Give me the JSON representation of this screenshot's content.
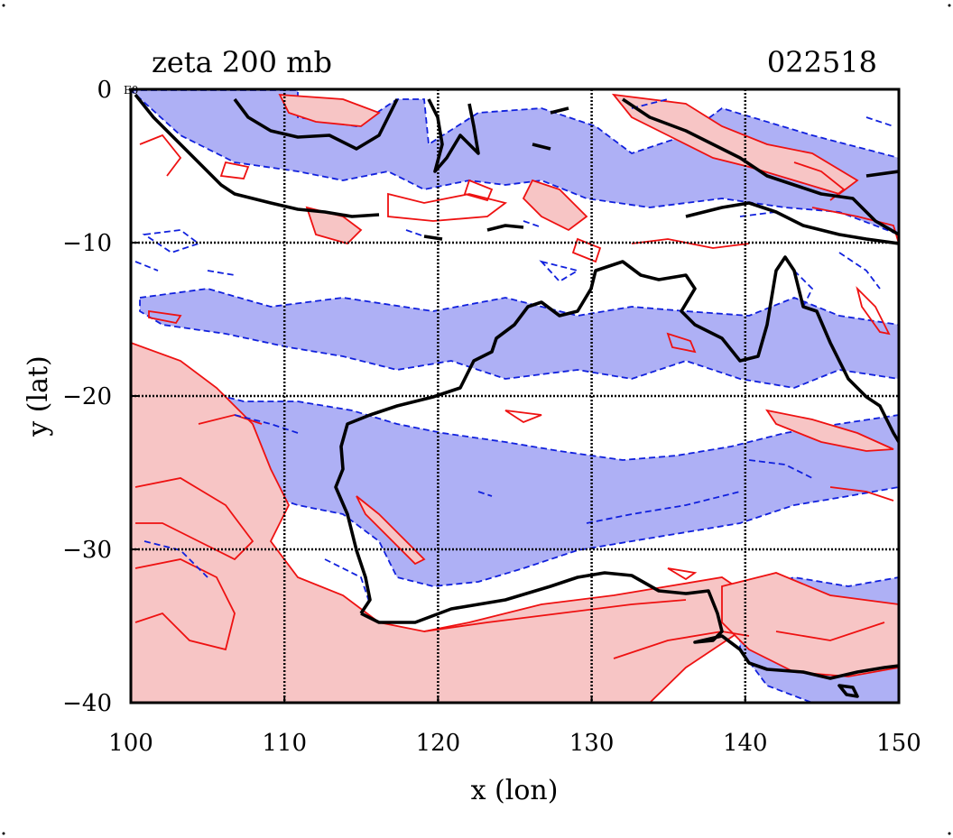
{
  "header": {
    "title": "zeta 200 mb",
    "timestamp": "022518"
  },
  "corner_label": "E0",
  "axes": {
    "xlabel": "x (lon)",
    "ylabel": "y (lat)",
    "xticks": [
      "100",
      "110",
      "120",
      "130",
      "140",
      "150"
    ],
    "yticks": [
      "0",
      "−10",
      "−20",
      "−30",
      "−40"
    ],
    "xlim": [
      100,
      150
    ],
    "ylim": [
      -40,
      0
    ]
  },
  "colors": {
    "positive_fill": "#f7c5c5",
    "positive_line": "#ee1111",
    "negative_fill": "#aeb0f5",
    "negative_line": "#1020dd",
    "coastline": "#000000",
    "grid": "#000000"
  },
  "map": {
    "region": "Australia / Maritime Continent",
    "field": "relative vorticity",
    "grid": true
  }
}
